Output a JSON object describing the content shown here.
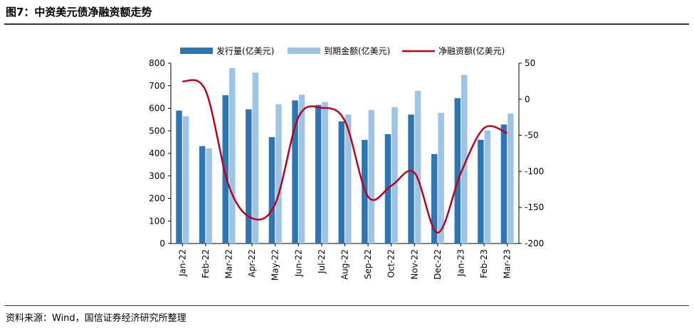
{
  "figure": {
    "title": "图7：中资美元债净融资额走势",
    "source": "资料来源：Wind，国信证券经济研究所整理"
  },
  "colors": {
    "issuance": "#2e75b6",
    "maturity": "#9dc3e6",
    "net": "#c0001b"
  },
  "chart_data": {
    "type": "bar",
    "categories": [
      "Jan-22",
      "Feb-22",
      "Mar-22",
      "Apr-22",
      "May-22",
      "Jun-22",
      "Jul-22",
      "Aug-22",
      "Sep-22",
      "Oct-22",
      "Nov-22",
      "Dec-22",
      "Jan-23",
      "Feb-23",
      "Mar-23"
    ],
    "series": [
      {
        "name": "发行量(亿美元)",
        "type": "bar",
        "axis": "left",
        "values": [
          590,
          432,
          658,
          595,
          472,
          635,
          615,
          542,
          460,
          485,
          572,
          397,
          645,
          460,
          528
        ]
      },
      {
        "name": "到期金额(亿美元)",
        "type": "bar",
        "axis": "left",
        "values": [
          565,
          422,
          778,
          758,
          618,
          660,
          628,
          572,
          592,
          605,
          677,
          580,
          748,
          502,
          577
        ]
      },
      {
        "name": "净融资额(亿美元)",
        "type": "line",
        "axis": "right",
        "values": [
          25,
          12,
          -120,
          -165,
          -145,
          -25,
          -12,
          -30,
          -135,
          -120,
          -102,
          -185,
          -102,
          -40,
          -47
        ]
      }
    ],
    "y_left": {
      "ylim": [
        0,
        800
      ],
      "ticks": [
        "0",
        "100",
        "200",
        "300",
        "400",
        "500",
        "600",
        "700",
        "800"
      ]
    },
    "y_right": {
      "ylim": [
        -200,
        50
      ],
      "ticks": [
        "-200",
        "-150",
        "-100",
        "-50",
        "0",
        "50"
      ]
    },
    "legend": "top",
    "grid": false
  }
}
